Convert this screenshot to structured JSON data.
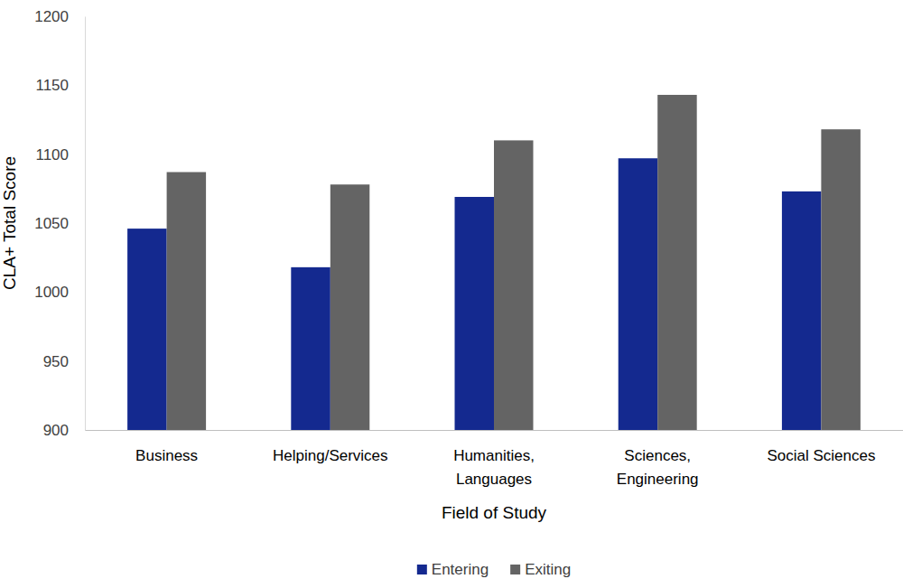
{
  "chart_data": {
    "type": "bar",
    "x_label": "Field of Study",
    "y_label": "CLA+ Total Score",
    "categories": [
      "Business",
      "Helping/Services",
      "Humanities, Languages",
      "Sciences, Engineering",
      "Social Sciences"
    ],
    "series": [
      {
        "name": "Entering",
        "color": "#14298f",
        "values": [
          1046,
          1018,
          1069,
          1097,
          1073
        ]
      },
      {
        "name": "Exiting",
        "color": "#646464",
        "values": [
          1087,
          1078,
          1110,
          1143,
          1118
        ]
      }
    ],
    "ylim": [
      900,
      1200
    ],
    "yticks": [
      900,
      950,
      1000,
      1050,
      1100,
      1150,
      1200
    ],
    "grid": false,
    "legend": "bottom"
  }
}
